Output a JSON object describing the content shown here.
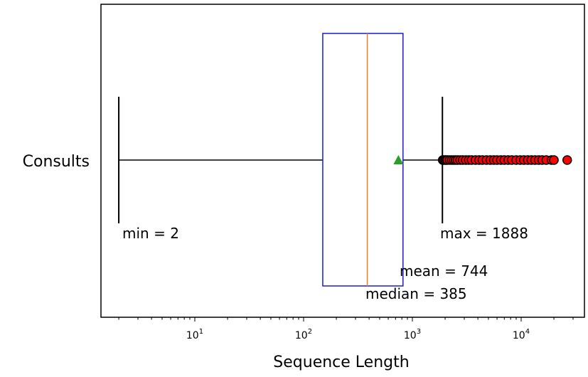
{
  "chart_data": {
    "type": "boxplot",
    "orientation": "horizontal",
    "categories": [
      "Consults"
    ],
    "xlabel": "Sequence Length",
    "xscale": "log",
    "xlim": [
      1.4,
      48000
    ],
    "x_ticks": [
      {
        "value": 10,
        "base": "10",
        "exp": "1"
      },
      {
        "value": 100,
        "base": "10",
        "exp": "2"
      },
      {
        "value": 1000,
        "base": "10",
        "exp": "3"
      },
      {
        "value": 10000,
        "base": "10",
        "exp": "4"
      }
    ],
    "series": [
      {
        "whisker_low": 2,
        "q1": 150,
        "median": 385,
        "q3": 820,
        "whisker_high": 1888,
        "mean": 744,
        "outliers": [
          1900,
          1950,
          2000,
          2050,
          2100,
          2200,
          2300,
          2400,
          2500,
          2600,
          2750,
          2900,
          3100,
          3300,
          3500,
          3800,
          4100,
          4400,
          4800,
          5200,
          5600,
          6000,
          6500,
          7000,
          7600,
          8200,
          9000,
          9800,
          10600,
          11500,
          12400,
          13400,
          14500,
          15600,
          17000,
          19000,
          20000,
          26500
        ]
      }
    ],
    "annotations": {
      "min": "min = 2",
      "max": "max = 1888",
      "mean": "mean = 744",
      "median": "median = 385"
    },
    "colors": {
      "box": "#1a1ad6",
      "median": "#f07c2a",
      "mean": "#2a9d2a",
      "outlier": "#ff0000",
      "whisker": "#000000"
    }
  }
}
